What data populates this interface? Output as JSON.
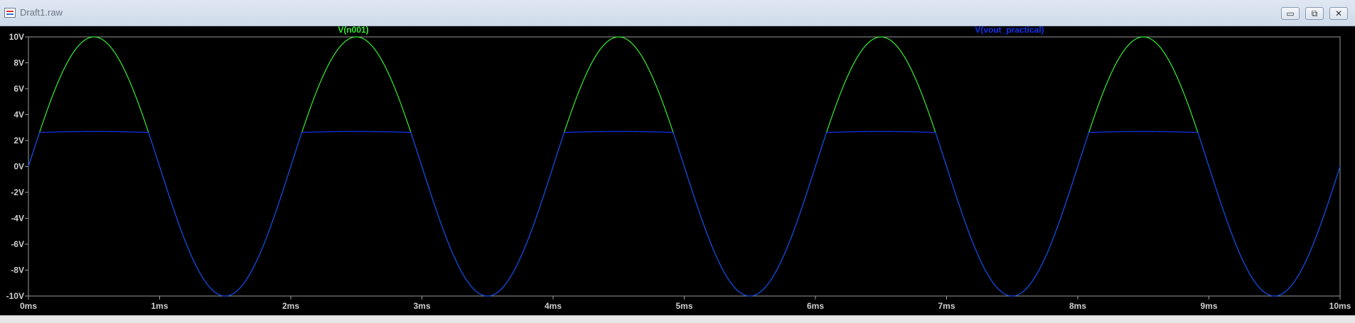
{
  "window": {
    "title": "Draft1.raw",
    "buttons": {
      "minimize": "▭",
      "restore": "⧉",
      "close": "✕"
    }
  },
  "icons": {
    "app": "waveform-viewer-icon",
    "minimize": "minimize-icon",
    "restore": "restore-icon",
    "close": "close-icon"
  },
  "colors": {
    "background": "#000000",
    "axis": "#9a9a9a",
    "label": "#cfcfcf",
    "v_n001": "#33ee33",
    "vout_practical": "#1133ee"
  },
  "chart_data": {
    "type": "line",
    "title": "",
    "xlabel": "",
    "ylabel": "",
    "xlim": [
      0,
      10
    ],
    "ylim": [
      -10,
      10
    ],
    "x_unit": "ms",
    "y_unit": "V",
    "x_ticks": [
      "0ms",
      "1ms",
      "2ms",
      "3ms",
      "4ms",
      "5ms",
      "6ms",
      "7ms",
      "8ms",
      "9ms",
      "10ms"
    ],
    "y_ticks": [
      "10V",
      "8V",
      "6V",
      "4V",
      "2V",
      "0V",
      "-2V",
      "-4V",
      "-6V",
      "-8V",
      "-10V"
    ],
    "grid": false,
    "legend": "top",
    "series": [
      {
        "name": "V(n001)",
        "color": "#33ee33",
        "x": [
          0,
          0.25,
          0.5,
          0.75,
          1.0,
          1.25,
          1.5,
          1.75,
          2.0,
          2.25,
          2.5,
          2.75,
          3.0,
          3.25,
          3.5,
          3.75,
          4.0,
          4.25,
          4.5,
          4.75,
          5.0,
          5.25,
          5.5,
          5.75,
          6.0,
          6.25,
          6.5,
          6.75,
          7.0,
          7.25,
          7.5,
          7.75,
          8.0,
          8.25,
          8.5,
          8.75,
          9.0,
          9.25,
          9.5,
          9.75,
          10.0
        ],
        "y": [
          0,
          7.07,
          10,
          7.07,
          0,
          -7.07,
          -10,
          -7.07,
          0,
          7.07,
          10,
          7.07,
          0,
          -7.07,
          -10,
          -7.07,
          0,
          7.07,
          10,
          7.07,
          0,
          -7.07,
          -10,
          -7.07,
          0,
          7.07,
          10,
          7.07,
          0,
          -7.07,
          -10,
          -7.07,
          0,
          7.07,
          10,
          7.07,
          0,
          -7.07,
          -10,
          -7.07,
          0
        ]
      },
      {
        "name": "V(vout_practical)",
        "color": "#1133ee",
        "x": [
          0,
          0.083,
          0.25,
          0.5,
          0.75,
          0.917,
          1.0,
          1.25,
          1.5,
          1.75,
          2.0,
          2.083,
          2.25,
          2.5,
          2.75,
          2.917,
          3.0,
          3.25,
          3.5,
          3.75,
          4.0,
          4.083,
          4.25,
          4.5,
          4.75,
          4.917,
          5.0,
          5.25,
          5.5,
          5.75,
          6.0,
          6.083,
          6.25,
          6.5,
          6.75,
          6.917,
          7.0,
          7.25,
          7.5,
          7.75,
          8.0,
          8.083,
          8.25,
          8.5,
          8.75,
          8.917,
          9.0,
          9.25,
          9.5,
          9.75,
          10.0
        ],
        "y": [
          0,
          2.6,
          2.65,
          2.7,
          2.65,
          2.6,
          0,
          -7.07,
          -10,
          -7.07,
          0,
          2.6,
          2.65,
          2.7,
          2.65,
          2.6,
          0,
          -7.07,
          -10,
          -7.07,
          0,
          2.6,
          2.65,
          2.7,
          2.65,
          2.6,
          0,
          -7.07,
          -10,
          -7.07,
          0,
          2.6,
          2.65,
          2.7,
          2.65,
          2.6,
          0,
          -7.07,
          -10,
          -7.07,
          0,
          2.6,
          2.65,
          2.7,
          2.65,
          2.6,
          0,
          -7.07,
          -10,
          -7.07,
          0
        ]
      }
    ]
  }
}
